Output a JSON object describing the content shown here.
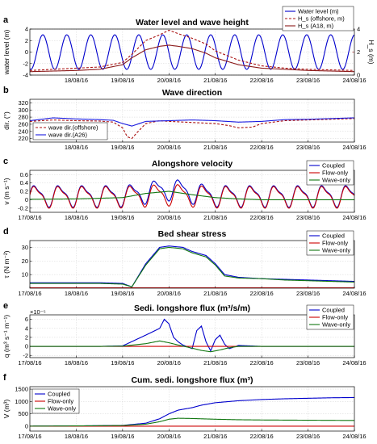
{
  "chart_data": [
    {
      "panel": "a",
      "type": "line",
      "title": "Water level and wave height",
      "ylabel": "water level (m)",
      "ylabel_right": "H_s (m)",
      "xlim": [
        "17/08/16",
        "24/08/16"
      ],
      "x_ticks": [
        "18/08/16",
        "19/08/16",
        "20/08/16",
        "21/08/16",
        "22/08/16",
        "23/08/16",
        "24/08/16"
      ],
      "ylim": [
        -4,
        4
      ],
      "y_ticks": [
        "-4",
        "-2",
        "0",
        "2",
        "4"
      ],
      "ylim_right": [
        0,
        4
      ],
      "y_ticks_right": [
        "0",
        "2",
        "4"
      ],
      "legend": [
        "Water level (m)",
        "H_s (offshore, m)",
        "H_s (A18, m)"
      ],
      "legend_position": "top-right",
      "series": [
        {
          "name": "Water level (m)",
          "color": "#0000cc",
          "style": "solid",
          "axis": "left",
          "model": "tide",
          "amplitude": 3.0,
          "period_days": 0.5175,
          "phase_day": 0.15
        },
        {
          "name": "H_s (offshore, m)",
          "color": "#aa1111",
          "style": "dashed",
          "axis": "right",
          "x": [
            0,
            0.5,
            1,
            1.5,
            2,
            2.2,
            2.5,
            2.8,
            3,
            3.2,
            3.5,
            3.8,
            4,
            4.5,
            5,
            5.5,
            6,
            6.5,
            7
          ],
          "y": [
            0.4,
            0.5,
            0.6,
            0.7,
            1.1,
            1.8,
            3.0,
            3.5,
            3.9,
            3.6,
            3.2,
            2.7,
            2.1,
            1.3,
            0.8,
            0.6,
            0.5,
            0.45,
            0.4
          ]
        },
        {
          "name": "H_s (A18, m)",
          "color": "#8b1a1a",
          "style": "solid",
          "axis": "right",
          "x": [
            0,
            0.5,
            1,
            1.5,
            2,
            2.2,
            2.5,
            2.8,
            3,
            3.2,
            3.5,
            3.8,
            4,
            4.5,
            5,
            5.5,
            6,
            6.5,
            7
          ],
          "y": [
            0.3,
            0.35,
            0.4,
            0.5,
            0.9,
            1.5,
            2.2,
            2.5,
            2.6,
            2.5,
            2.3,
            1.9,
            1.5,
            0.9,
            0.6,
            0.5,
            0.4,
            0.35,
            0.3
          ]
        }
      ]
    },
    {
      "panel": "b",
      "type": "line",
      "title": "Wave direction",
      "ylabel": "dir. (°)",
      "x_ticks": [
        "18/08/16",
        "19/08/16",
        "20/08/16",
        "21/08/16",
        "22/08/16",
        "23/08/16",
        "24/08/16"
      ],
      "ylim": [
        210,
        330
      ],
      "y_ticks": [
        "220",
        "240",
        "260",
        "280",
        "300",
        "320"
      ],
      "legend": [
        "wave dir.(offshore)",
        "wave dir.(A26)"
      ],
      "legend_position": "bottom-left",
      "series": [
        {
          "name": "wave dir.(offshore)",
          "color": "#aa1111",
          "style": "dashed",
          "x": [
            0,
            0.5,
            1,
            1.5,
            1.8,
            2,
            2.1,
            2.2,
            2.3,
            2.5,
            2.8,
            3,
            3.5,
            4,
            4.3,
            4.5,
            4.8,
            5,
            5.5,
            6,
            6.5,
            7
          ],
          "y": [
            268,
            272,
            270,
            269,
            266,
            250,
            225,
            220,
            235,
            262,
            270,
            268,
            265,
            262,
            256,
            250,
            252,
            262,
            270,
            272,
            274,
            276
          ]
        },
        {
          "name": "wave dir.(A26)",
          "color": "#1a1adf",
          "style": "solid",
          "x": [
            0,
            0.5,
            1,
            1.5,
            1.8,
            2,
            2.2,
            2.5,
            3,
            3.5,
            4,
            4.5,
            5,
            5.5,
            6,
            6.5,
            7
          ],
          "y": [
            270,
            278,
            275,
            273,
            271,
            262,
            255,
            268,
            270,
            272,
            270,
            266,
            268,
            273,
            274,
            276,
            278
          ]
        }
      ]
    },
    {
      "panel": "c",
      "type": "line",
      "title": "Alongshore velocity",
      "ylabel": "v (m s⁻¹)",
      "x_ticks": [
        "17/08/16",
        "18/08/16",
        "19/08/16",
        "20/08/16",
        "21/08/16",
        "22/08/16",
        "23/08/16",
        "24/08/16"
      ],
      "ylim": [
        -0.3,
        0.7
      ],
      "y_ticks": [
        "-0.2",
        "0",
        "0.2",
        "0.4",
        "0.6"
      ],
      "legend": [
        "Coupled",
        "Flow-only",
        "Wave-only"
      ],
      "legend_position": "top-right",
      "series": [
        {
          "name": "Coupled",
          "color": "#0000cc",
          "model": "tidal_current",
          "mean": 0.1,
          "amplitude": 0.3,
          "period_days": 0.5175,
          "storm_add": 0.15
        },
        {
          "name": "Flow-only",
          "color": "#cc0000",
          "model": "tidal_current",
          "mean": 0.08,
          "amplitude": 0.3,
          "period_days": 0.5175,
          "storm_add": 0.05
        },
        {
          "name": "Wave-only",
          "color": "#117711",
          "x": [
            0,
            1,
            2,
            2.5,
            3,
            3.5,
            4,
            4.5,
            5,
            6,
            7
          ],
          "y": [
            0.01,
            0.02,
            0.05,
            0.15,
            0.2,
            0.12,
            0.05,
            0.02,
            0.0,
            0.0,
            0.0
          ]
        }
      ]
    },
    {
      "panel": "d",
      "type": "line",
      "title": "Bed shear stress",
      "ylabel": "τ (N m⁻²)",
      "x_ticks": [
        "17/08/16",
        "18/08/16",
        "19/08/16",
        "20/08/16",
        "21/08/16",
        "22/08/16",
        "23/08/16",
        "24/08/16"
      ],
      "ylim": [
        0,
        35
      ],
      "y_ticks": [
        "10",
        "20",
        "30"
      ],
      "legend": [
        "Coupled",
        "Flow-only",
        "Wave-only"
      ],
      "legend_position": "top-right",
      "series": [
        {
          "name": "Coupled",
          "color": "#0000cc",
          "x": [
            0,
            0.5,
            1,
            1.5,
            2,
            2.2,
            2.5,
            2.8,
            3,
            3.3,
            3.5,
            3.8,
            4,
            4.2,
            4.5,
            5,
            5.5,
            6,
            6.5,
            7
          ],
          "y": [
            4,
            4,
            4,
            4,
            3.5,
            1,
            18,
            30,
            31,
            30,
            27,
            24,
            18,
            10,
            8,
            7,
            6.5,
            6,
            5.5,
            5
          ]
        },
        {
          "name": "Flow-only",
          "color": "#cc0000",
          "x": [
            0,
            7
          ],
          "y": [
            0.3,
            0.3
          ]
        },
        {
          "name": "Wave-only",
          "color": "#117711",
          "x": [
            0,
            0.5,
            1,
            1.5,
            2,
            2.2,
            2.5,
            2.8,
            3,
            3.3,
            3.5,
            3.8,
            4,
            4.2,
            4.5,
            5,
            5.5,
            6,
            6.5,
            7
          ],
          "y": [
            3.5,
            3.5,
            3.5,
            3.5,
            3,
            1,
            17,
            29,
            30,
            29,
            26,
            23,
            17,
            9,
            7.5,
            7,
            6,
            5.5,
            5,
            4.5
          ]
        }
      ]
    },
    {
      "panel": "e",
      "type": "line",
      "title": "Sedi. longshore flux (m³/s/m)",
      "ylabel": "q (m³ s⁻¹ m⁻¹)",
      "exponent_label": "×10⁻⁵",
      "x_ticks": [
        "17/08/16",
        "18/08/16",
        "19/08/16",
        "20/08/16",
        "21/08/16",
        "22/08/16",
        "23/08/16",
        "24/08/16"
      ],
      "ylim": [
        -2.5,
        7
      ],
      "y_ticks": [
        "-2",
        "0",
        "2",
        "4",
        "6"
      ],
      "legend": [
        "Coupled",
        "Flow-only",
        "Wave-only"
      ],
      "legend_position": "top-right",
      "series": [
        {
          "name": "Coupled",
          "color": "#0000cc",
          "x": [
            0,
            1.5,
            2,
            2.5,
            2.8,
            2.9,
            3,
            3.1,
            3.2,
            3.3,
            3.5,
            3.6,
            3.7,
            3.8,
            3.9,
            4,
            4.1,
            4.2,
            4.3,
            4.5,
            5,
            6,
            7
          ],
          "y": [
            0,
            0,
            0.1,
            2.5,
            4,
            6,
            5,
            2,
            1,
            0.3,
            -0.5,
            3.5,
            4.5,
            1,
            -1,
            1.5,
            2.5,
            0.5,
            -0.5,
            0.2,
            0,
            0,
            0
          ]
        },
        {
          "name": "Flow-only",
          "color": "#cc0000",
          "x": [
            0,
            7
          ],
          "y": [
            0,
            0
          ]
        },
        {
          "name": "Wave-only",
          "color": "#117711",
          "x": [
            0,
            1.5,
            2,
            2.5,
            2.8,
            3,
            3.2,
            3.5,
            3.7,
            3.9,
            4.1,
            4.3,
            4.5,
            5,
            6,
            7
          ],
          "y": [
            0,
            0,
            0.05,
            0.6,
            1.2,
            0.8,
            0.3,
            -0.4,
            -0.9,
            -1.2,
            -0.8,
            -0.3,
            0,
            0,
            0,
            0
          ]
        }
      ]
    },
    {
      "panel": "f",
      "type": "line",
      "title": "Cum. sedi. longshore flux (m³)",
      "ylabel": "V (m³)",
      "x_ticks": [
        "17/08/16",
        "18/08/16",
        "19/08/16",
        "20/08/16",
        "21/08/16",
        "22/08/16",
        "23/08/16",
        "24/08/16"
      ],
      "ylim": [
        -200,
        1600
      ],
      "y_ticks": [
        "0",
        "500",
        "1000",
        "1500"
      ],
      "legend": [
        "Coupled",
        "Flow-only",
        "Wave-only"
      ],
      "legend_position": "top-left",
      "series": [
        {
          "name": "Coupled",
          "color": "#0000cc",
          "x": [
            0,
            1,
            2,
            2.5,
            2.8,
            3,
            3.2,
            3.5,
            3.7,
            4,
            4.5,
            5,
            5.5,
            6,
            6.5,
            7
          ],
          "y": [
            0,
            10,
            30,
            120,
            300,
            500,
            650,
            750,
            850,
            950,
            1030,
            1080,
            1110,
            1130,
            1150,
            1160
          ]
        },
        {
          "name": "Flow-only",
          "color": "#cc0000",
          "x": [
            0,
            7
          ],
          "y": [
            0,
            0
          ]
        },
        {
          "name": "Wave-only",
          "color": "#117711",
          "x": [
            0,
            1,
            2,
            2.5,
            2.8,
            3,
            3.2,
            3.5,
            4,
            4.5,
            5,
            6,
            7
          ],
          "y": [
            0,
            10,
            25,
            80,
            180,
            280,
            320,
            310,
            280,
            260,
            250,
            240,
            230
          ]
        }
      ]
    }
  ]
}
